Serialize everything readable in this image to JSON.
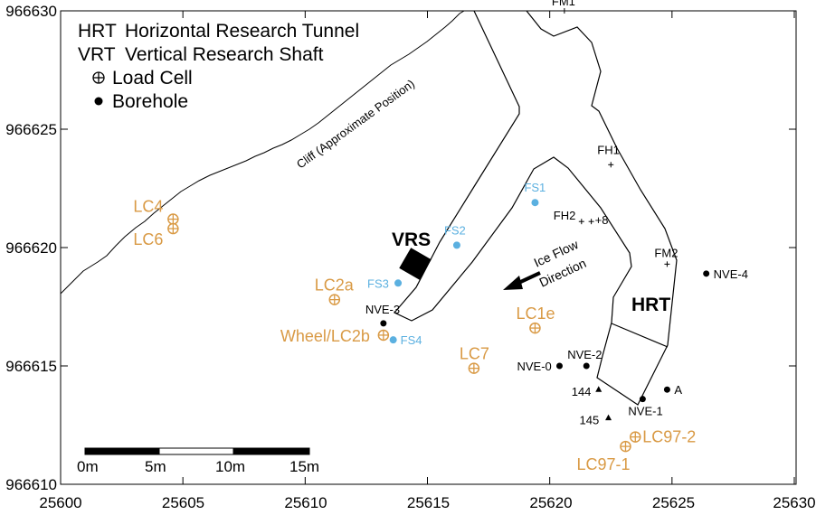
{
  "axes": {
    "x_ticks": [
      "25600",
      "25605",
      "25610",
      "25615",
      "25620",
      "25625",
      "25630"
    ],
    "y_ticks": [
      "966630",
      "966625",
      "966620",
      "966615",
      "966610"
    ]
  },
  "legend": [
    {
      "symbol": "HRT",
      "text": "Horizontal Research Tunnel"
    },
    {
      "symbol": "VRT",
      "text": "Vertical Research Shaft"
    },
    {
      "symbol": "load-cell",
      "text": "Load Cell"
    },
    {
      "symbol": "borehole",
      "text": "Borehole"
    }
  ],
  "features": {
    "cliff": "Cliff (Approximate Position)",
    "vrs": "VRS",
    "hrt": "HRT",
    "ice_flow_line1": "Ice Flow",
    "ice_flow_line2": "Direction"
  },
  "load_cells": [
    {
      "label": "LC4",
      "x": 25604.6,
      "y": 966621.2
    },
    {
      "label": "LC6",
      "x": 25604.6,
      "y": 966620.8
    },
    {
      "label": "LC2a",
      "x": 25611.2,
      "y": 966617.8
    },
    {
      "label": "Wheel/LC2b",
      "x": 25613.2,
      "y": 966616.3
    },
    {
      "label": "LC1e",
      "x": 25619.4,
      "y": 966616.6
    },
    {
      "label": "LC7",
      "x": 25616.9,
      "y": 966614.9
    },
    {
      "label": "LC97-2",
      "x": 25623.5,
      "y": 966612.0
    },
    {
      "label": "LC97-1",
      "x": 25623.1,
      "y": 966611.6
    }
  ],
  "boreholes_blue": [
    {
      "label": "FS1",
      "x": 25619.4,
      "y": 966621.9
    },
    {
      "label": "FS2",
      "x": 25616.2,
      "y": 966620.1
    },
    {
      "label": "FS3",
      "x": 25613.8,
      "y": 966618.5
    },
    {
      "label": "FS4",
      "x": 25613.6,
      "y": 966616.1
    }
  ],
  "boreholes_black": [
    {
      "label": "NVE-3",
      "x": 25613.2,
      "y": 966616.8
    },
    {
      "label": "NVE-0",
      "x": 25620.4,
      "y": 966615.0
    },
    {
      "label": "NVE-2",
      "x": 25621.5,
      "y": 966615.0
    },
    {
      "label": "NVE-1",
      "x": 25623.8,
      "y": 966613.6
    },
    {
      "label": "A",
      "x": 25624.8,
      "y": 966614.0
    },
    {
      "label": "NVE-4",
      "x": 25626.4,
      "y": 966618.9
    }
  ],
  "survey_points": [
    {
      "label": "FM1",
      "x": 25620.6,
      "y": 966630.0
    },
    {
      "label": "FH1",
      "x": 25622.5,
      "y": 966623.5
    },
    {
      "label": "FH2",
      "x": 25621.3,
      "y": 966621.1
    },
    {
      "label": "+8",
      "x": 25621.7,
      "y": 966621.1
    },
    {
      "label": "FM2",
      "x": 25624.8,
      "y": 966619.3
    }
  ],
  "triangles": [
    {
      "label": "144",
      "x": 25622.0,
      "y": 966614.0
    },
    {
      "label": "145",
      "x": 25622.4,
      "y": 966612.8
    }
  ],
  "scale_bar": [
    "0m",
    "5m",
    "10m",
    "15m"
  ]
}
